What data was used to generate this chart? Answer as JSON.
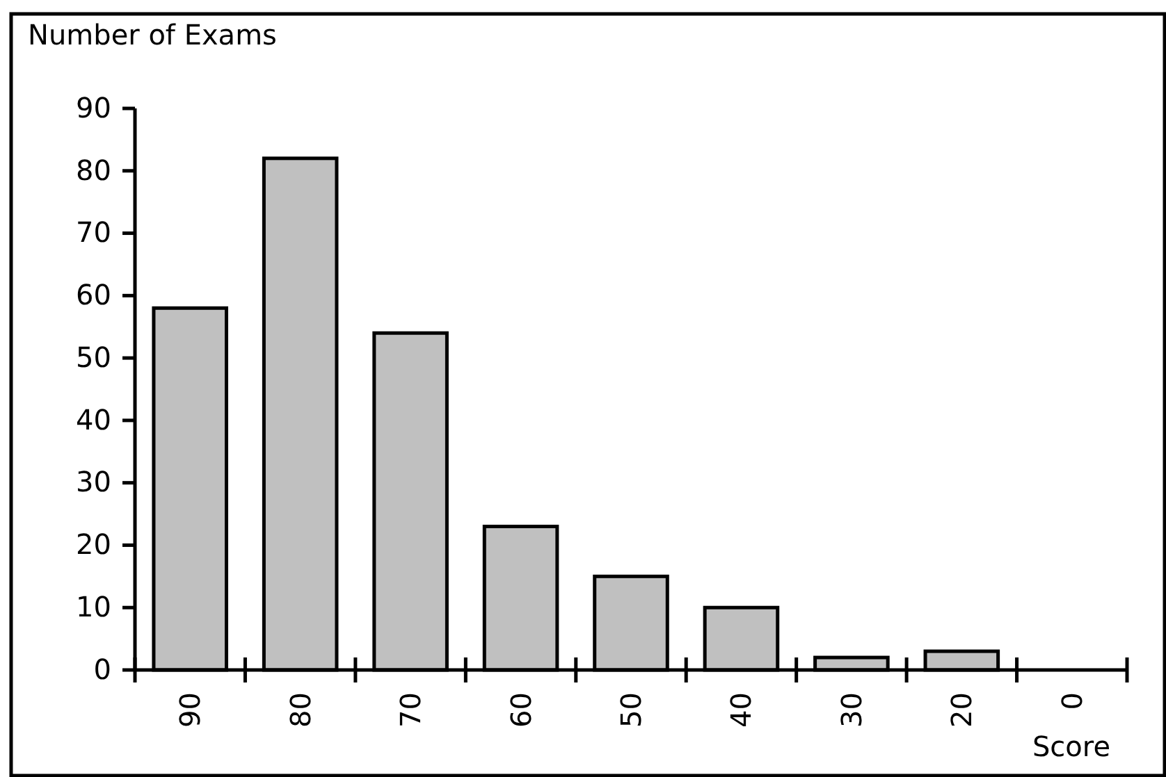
{
  "chart_data": {
    "type": "bar",
    "xlabel": "Score",
    "ylabel": "Number of Exams",
    "categories": [
      "90",
      "80",
      "70",
      "60",
      "50",
      "40",
      "30",
      "20",
      "0"
    ],
    "values": [
      58,
      82,
      54,
      23,
      15,
      10,
      2,
      3,
      0
    ],
    "color": "#c0c0c0",
    "ylim": [
      0,
      90
    ],
    "yticks": [
      0,
      10,
      20,
      30,
      40,
      50,
      60,
      70,
      80,
      90
    ],
    "grid": false
  }
}
